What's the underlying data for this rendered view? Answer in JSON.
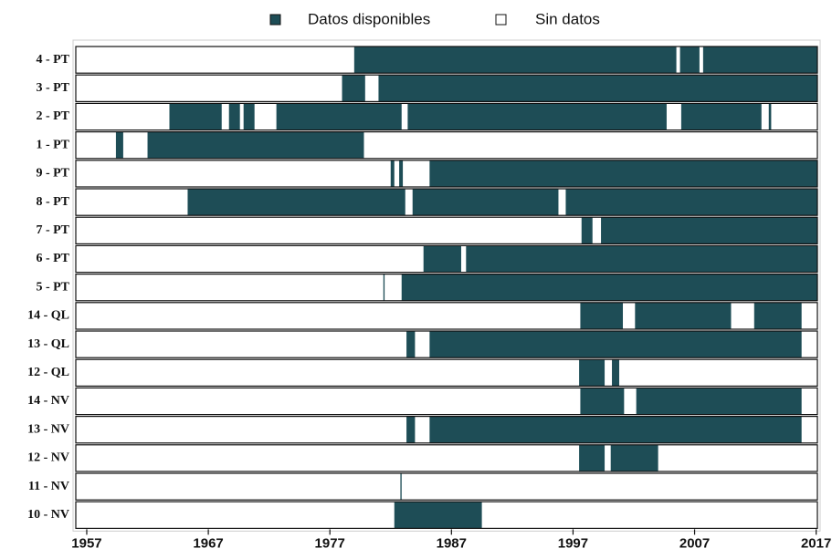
{
  "chart_data": {
    "type": "timeline",
    "categories": [
      "4 - PT",
      "3 - PT",
      "2 - PT",
      "1 - PT",
      "9 - PT",
      "8 - PT",
      "7 - PT",
      "6 - PT",
      "5 - PT",
      "14 - QL",
      "13 - QL",
      "12 - QL",
      "14 - NV",
      "13 - NV",
      "12 - NV",
      "11 - NV",
      "10 - NV"
    ],
    "series": [
      {
        "name": "Datos disponibles",
        "color": "#1e4d56",
        "intervals": [
          [
            [
              1979.0,
              2005.5
            ],
            [
              2005.8,
              2007.4
            ],
            [
              2007.7,
              2017.1
            ]
          ],
          [
            [
              1978.0,
              1979.9
            ],
            [
              1981.0,
              2017.1
            ]
          ],
          [
            [
              1963.8,
              1968.1
            ],
            [
              1968.7,
              1969.6
            ],
            [
              1969.9,
              1970.8
            ],
            [
              1972.6,
              1982.9
            ],
            [
              1983.4,
              2004.7
            ],
            [
              2005.9,
              2012.5
            ],
            [
              2013.1,
              2013.3
            ]
          ],
          [
            [
              1959.4,
              1960.0
            ],
            [
              1962.0,
              1979.8
            ]
          ],
          [
            [
              1982.0,
              1982.3
            ],
            [
              1982.7,
              1983.0
            ],
            [
              1985.2,
              2017.1
            ]
          ],
          [
            [
              1965.3,
              1983.2
            ],
            [
              1983.8,
              1995.8
            ],
            [
              1996.4,
              2017.1
            ]
          ],
          [
            [
              1997.7,
              1998.6
            ],
            [
              1999.3,
              2017.1
            ]
          ],
          [
            [
              1984.7,
              1987.8
            ],
            [
              1988.2,
              2017.1
            ]
          ],
          [
            [
              1981.4,
              1981.5
            ],
            [
              1982.9,
              2017.1
            ]
          ],
          [
            [
              1997.6,
              2001.1
            ],
            [
              2002.1,
              2010.0
            ],
            [
              2011.9,
              2015.8
            ]
          ],
          [
            [
              1983.3,
              1984.0
            ],
            [
              1985.2,
              2015.8
            ]
          ],
          [
            [
              1997.5,
              1999.6
            ],
            [
              2000.2,
              2000.8
            ]
          ],
          [
            [
              1997.6,
              2001.2
            ],
            [
              2002.2,
              2015.8
            ]
          ],
          [
            [
              1983.3,
              1984.0
            ],
            [
              1985.2,
              2015.8
            ]
          ],
          [
            [
              1997.5,
              1999.6
            ],
            [
              2000.1,
              2004.0
            ]
          ],
          [
            [
              1982.8,
              1982.9
            ]
          ],
          [
            [
              1982.3,
              1989.5
            ]
          ]
        ]
      },
      {
        "name": "Sin datos",
        "color": "#ffffff"
      }
    ],
    "xlim": [
      1956.1,
      2017.1
    ],
    "xticks": [
      1957,
      1967,
      1977,
      1987,
      1997,
      2007,
      2017
    ]
  }
}
